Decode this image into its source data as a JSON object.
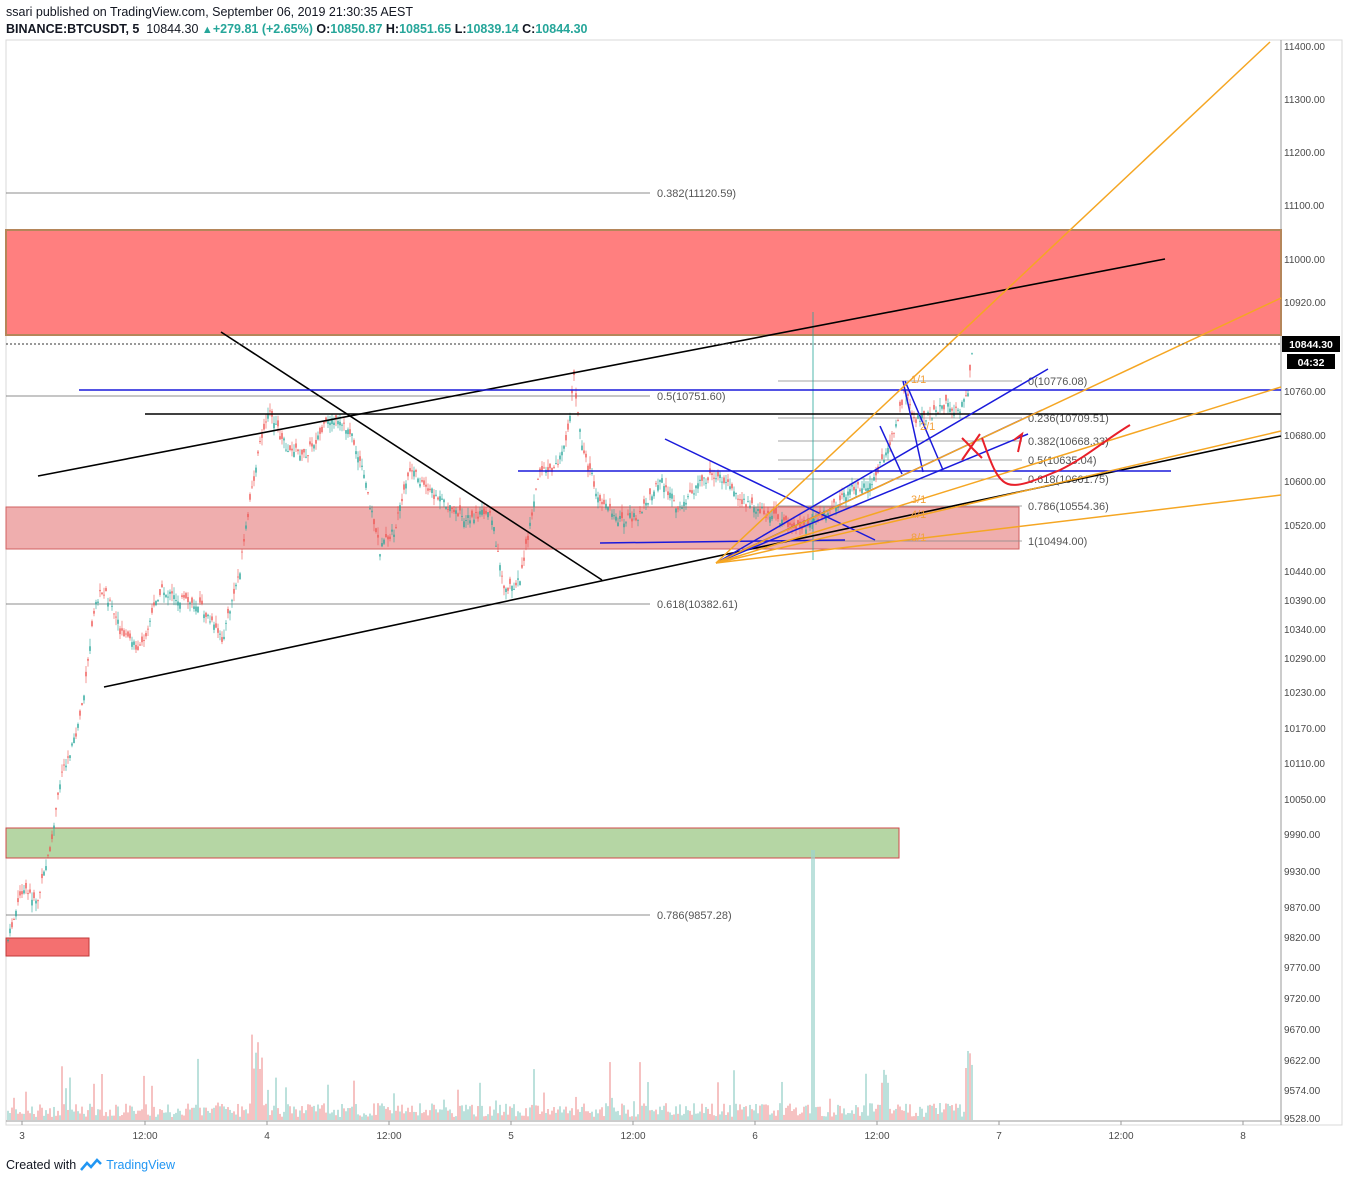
{
  "header": {
    "line1": "ssari published on TradingView.com, September 06, 2019 21:30:35 AEST",
    "symbol": "BINANCE:BTCUSDT, 5",
    "last": "10844.30",
    "change": "+279.81 (+2.65%)",
    "o_label": "O:",
    "o_value": "10850.87",
    "h_label": "H:",
    "h_value": "10851.65",
    "l_label": "L:",
    "l_value": "10839.14",
    "c_label": "C:",
    "c_value": "10844.30"
  },
  "footer": {
    "created_with": "Created with",
    "brand": "TradingView"
  },
  "colors": {
    "up": "#26a69a",
    "down": "#ef5350",
    "resistance": "#f26b6b",
    "support": "#8fd08a",
    "fib": "#555555",
    "gann": "#f5a623",
    "trend": "#000000",
    "channel": "#0000cc"
  },
  "chart_data": {
    "type": "candlestick",
    "ylim": [
      9528,
      11420
    ],
    "y_ticks": [
      "11400.00",
      "11300.00",
      "11200.00",
      "11100.00",
      "11000.00",
      "10920.00",
      "10844.30",
      "10760.00",
      "10680.00",
      "10600.00",
      "10520.00",
      "10440.00",
      "10390.00",
      "10340.00",
      "10290.00",
      "10230.00",
      "10170.00",
      "10110.00",
      "10050.00",
      "9990.00",
      "9930.00",
      "9870.00",
      "9820.00",
      "9770.00",
      "9720.00",
      "9670.00",
      "9622.00",
      "9574.00",
      "9528.00"
    ],
    "x_ticks": [
      "3",
      "12:00",
      "4",
      "12:00",
      "5",
      "12:00",
      "6",
      "12:00",
      "7",
      "12:00",
      "8"
    ],
    "price_label": "10844.30",
    "countdown": "04:32",
    "fib_upper": [
      {
        "label": "0.382(11120.59)",
        "price": 11120.59
      },
      {
        "label": "0.5(10751.60)",
        "price": 10751.6
      },
      {
        "label": "0.618(10382.61)",
        "price": 10382.61
      },
      {
        "label": "0.786(9857.28)",
        "price": 9857.28
      }
    ],
    "fib_lower": [
      {
        "label": "0(10776.08)",
        "price": 10776.08
      },
      {
        "label": "0.236(10709.51)",
        "price": 10709.51
      },
      {
        "label": "0.382(10668.33)",
        "price": 10668.33
      },
      {
        "label": "0.5(10635.04)",
        "price": 10635.04
      },
      {
        "label": "0.618(10601.75)",
        "price": 10601.75
      },
      {
        "label": "0.786(10554.36)",
        "price": 10554.36
      },
      {
        "label": "1(10494.00)",
        "price": 10494.0
      }
    ],
    "gann_labels": [
      "1/1",
      "2/1",
      "3/1",
      "4/1",
      "8/1"
    ],
    "zones": [
      {
        "name": "resistance",
        "from": 10865,
        "to": 11055
      },
      {
        "name": "support-pink",
        "from": 10490,
        "to": 10572
      },
      {
        "name": "support-green",
        "from": 9950,
        "to": 10005
      },
      {
        "name": "resistance-small",
        "from": 9793,
        "to": 9825
      }
    ]
  }
}
